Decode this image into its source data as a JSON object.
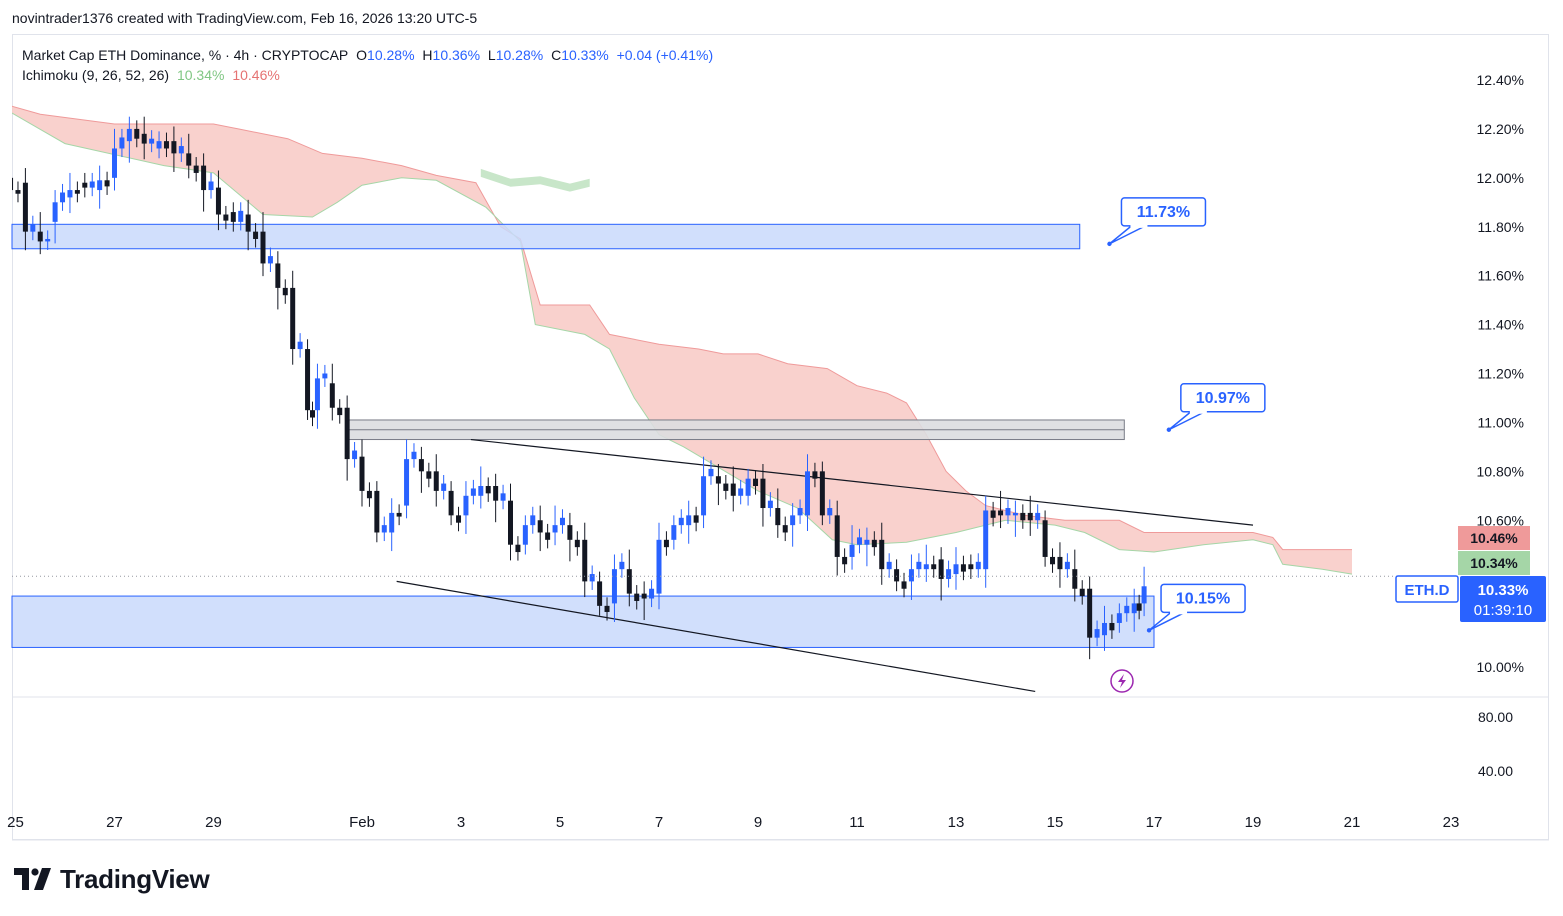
{
  "credit": "novintrader1376 created with TradingView.com, Feb 16, 2026 13:20 UTC-5",
  "legend": {
    "symbol": "Market Cap ETH Dominance, % · 4h · CRYPTOCAP",
    "o_label": "O",
    "o_value": "10.28%",
    "h_label": "H",
    "h_value": "10.36%",
    "l_label": "L",
    "l_value": "10.28%",
    "c_label": "C",
    "c_value": "10.33%",
    "change": "+0.04 (+0.41%)",
    "indicator": "Ichimoku (9, 26, 52, 26)",
    "ind_value1": "10.34%",
    "ind_value2": "10.46%"
  },
  "footer": {
    "brand": "TradingView"
  },
  "colors": {
    "up": "#2962ff",
    "down": "#131722",
    "cloud_bear": "#f8c9c4",
    "cloud_bull": "#c8e6c9",
    "zone": "#c9d9fb",
    "zone_border": "#2962ff",
    "resistance": "#d1d4dc",
    "label_border": "#2962ff"
  },
  "chart_data": {
    "type": "candlestick",
    "title": "Market Cap ETH Dominance, % · 4h · CRYPTOCAP",
    "symbol": "ETH.D",
    "price_axis": {
      "ylim": [
        9.88,
        12.5
      ],
      "ticks": [
        "12.40%",
        "12.20%",
        "12.00%",
        "11.80%",
        "11.60%",
        "11.40%",
        "11.20%",
        "11.00%",
        "10.80%",
        "10.60%",
        "10.00%"
      ],
      "tick_values": [
        12.4,
        12.2,
        12.0,
        11.8,
        11.6,
        11.4,
        11.2,
        11.0,
        10.8,
        10.6,
        10.0
      ]
    },
    "lower_axis": {
      "ticks": [
        "80.00",
        "40.00"
      ]
    },
    "time_axis": {
      "labels": [
        "25",
        "27",
        "29",
        "Feb",
        "3",
        "5",
        "7",
        "9",
        "11",
        "13",
        "15",
        "17",
        "19",
        "21",
        "23"
      ],
      "day_index": [
        -7,
        -5,
        -3,
        0,
        2,
        4,
        6,
        8,
        10,
        12,
        14,
        16,
        18,
        20,
        22
      ]
    },
    "candles_daily_path": [
      [
        -7.1,
        12.0,
        11.95
      ],
      [
        -6.8,
        11.98,
        11.78
      ],
      [
        -6.5,
        11.78,
        11.74
      ],
      [
        -6.2,
        11.82,
        11.9
      ],
      [
        -5.9,
        11.92,
        11.95
      ],
      [
        -5.6,
        11.98,
        11.96
      ],
      [
        -5.3,
        11.95,
        11.99
      ],
      [
        -5.0,
        12.0,
        12.12
      ],
      [
        -4.7,
        12.15,
        12.2
      ],
      [
        -4.4,
        12.18,
        12.14
      ],
      [
        -4.1,
        12.12,
        12.15
      ],
      [
        -3.8,
        12.15,
        12.1
      ],
      [
        -3.5,
        12.1,
        12.05
      ],
      [
        -3.2,
        12.05,
        11.95
      ],
      [
        -2.9,
        11.96,
        11.85
      ],
      [
        -2.6,
        11.86,
        11.82
      ],
      [
        -2.3,
        11.85,
        11.78
      ],
      [
        -2.0,
        11.78,
        11.65
      ],
      [
        -1.7,
        11.65,
        11.55
      ],
      [
        -1.4,
        11.55,
        11.3
      ],
      [
        -1.1,
        11.3,
        11.05
      ],
      [
        -0.9,
        11.05,
        11.18
      ],
      [
        -0.6,
        11.16,
        11.06
      ],
      [
        -0.3,
        11.06,
        10.85
      ],
      [
        0.0,
        10.86,
        10.72
      ],
      [
        0.3,
        10.72,
        10.55
      ],
      [
        0.6,
        10.55,
        10.63
      ],
      [
        0.9,
        10.66,
        10.85
      ],
      [
        1.2,
        10.85,
        10.8
      ],
      [
        1.5,
        10.8,
        10.72
      ],
      [
        1.8,
        10.72,
        10.62
      ],
      [
        2.1,
        10.62,
        10.7
      ],
      [
        2.4,
        10.7,
        10.74
      ],
      [
        2.7,
        10.74,
        10.68
      ],
      [
        3.0,
        10.68,
        10.5
      ],
      [
        3.3,
        10.5,
        10.58
      ],
      [
        3.6,
        10.6,
        10.55
      ],
      [
        3.9,
        10.55,
        10.58
      ],
      [
        4.2,
        10.58,
        10.52
      ],
      [
        4.5,
        10.52,
        10.35
      ],
      [
        4.8,
        10.35,
        10.25
      ],
      [
        5.1,
        10.26,
        10.4
      ],
      [
        5.4,
        10.4,
        10.3
      ],
      [
        5.7,
        10.3,
        10.28
      ],
      [
        6.0,
        10.3,
        10.52
      ],
      [
        6.3,
        10.52,
        10.58
      ],
      [
        6.6,
        10.58,
        10.62
      ],
      [
        6.9,
        10.62,
        10.78
      ],
      [
        7.2,
        10.78,
        10.75
      ],
      [
        7.5,
        10.75,
        10.7
      ],
      [
        7.8,
        10.7,
        10.77
      ],
      [
        8.1,
        10.77,
        10.65
      ],
      [
        8.4,
        10.65,
        10.58
      ],
      [
        8.7,
        10.58,
        10.62
      ],
      [
        9.0,
        10.62,
        10.8
      ],
      [
        9.3,
        10.8,
        10.62
      ],
      [
        9.6,
        10.62,
        10.45
      ],
      [
        9.9,
        10.45,
        10.5
      ],
      [
        10.2,
        10.5,
        10.52
      ],
      [
        10.5,
        10.52,
        10.4
      ],
      [
        10.8,
        10.4,
        10.35
      ],
      [
        11.1,
        10.35,
        10.4
      ],
      [
        11.4,
        10.4,
        10.42
      ],
      [
        11.7,
        10.44,
        10.36
      ],
      [
        12.0,
        10.38,
        10.42
      ],
      [
        12.3,
        10.42,
        10.4
      ],
      [
        12.6,
        10.4,
        10.64
      ],
      [
        12.9,
        10.64,
        10.62
      ],
      [
        13.2,
        10.62,
        10.63
      ],
      [
        13.5,
        10.63,
        10.6
      ],
      [
        13.8,
        10.6,
        10.45
      ],
      [
        14.1,
        10.45,
        10.4
      ],
      [
        14.4,
        10.4,
        10.32
      ],
      [
        14.7,
        10.32,
        10.12
      ],
      [
        15.0,
        10.13,
        10.18
      ],
      [
        15.3,
        10.18,
        10.22
      ],
      [
        15.6,
        10.22,
        10.26
      ],
      [
        15.8,
        10.26,
        10.33
      ]
    ],
    "ichimoku_cloud_bear_upper": [
      [
        -7.2,
        12.3
      ],
      [
        -6.5,
        12.26
      ],
      [
        -5.0,
        12.22
      ],
      [
        -3.0,
        12.22
      ],
      [
        -2.5,
        12.2
      ],
      [
        -1.5,
        12.16
      ],
      [
        -0.8,
        12.1
      ],
      [
        0.0,
        12.08
      ],
      [
        0.8,
        12.05
      ],
      [
        1.5,
        12.01
      ],
      [
        2.3,
        11.98
      ],
      [
        2.8,
        11.8
      ],
      [
        3.2,
        11.75
      ],
      [
        3.6,
        11.48
      ],
      [
        4.6,
        11.48
      ],
      [
        5.0,
        11.36
      ],
      [
        6.0,
        11.32
      ],
      [
        6.8,
        11.3
      ],
      [
        7.3,
        11.28
      ],
      [
        8.0,
        11.28
      ],
      [
        8.6,
        11.24
      ],
      [
        9.4,
        11.22
      ],
      [
        10.0,
        11.15
      ],
      [
        10.6,
        11.12
      ],
      [
        11.0,
        11.08
      ],
      [
        11.4,
        10.95
      ],
      [
        11.8,
        10.8
      ],
      [
        12.2,
        10.72
      ],
      [
        12.6,
        10.66
      ],
      [
        13.4,
        10.62
      ],
      [
        14.2,
        10.6
      ],
      [
        15.3,
        10.6
      ],
      [
        15.8,
        10.55
      ],
      [
        17.0,
        10.55
      ],
      [
        18.0,
        10.55
      ],
      [
        18.4,
        10.53
      ],
      [
        18.6,
        10.48
      ],
      [
        20.0,
        10.48
      ]
    ],
    "ichimoku_cloud_bear_lower": [
      [
        -7.2,
        12.28
      ],
      [
        -6.0,
        12.14
      ],
      [
        -4.0,
        12.05
      ],
      [
        -3.0,
        12.02
      ],
      [
        -2.0,
        11.85
      ],
      [
        -1.0,
        11.84
      ],
      [
        -0.5,
        11.9
      ],
      [
        0.0,
        11.97
      ],
      [
        0.8,
        12.0
      ],
      [
        1.5,
        11.99
      ],
      [
        2.5,
        11.88
      ],
      [
        2.9,
        11.8
      ],
      [
        3.2,
        11.74
      ],
      [
        3.5,
        11.4
      ],
      [
        4.5,
        11.36
      ],
      [
        5.0,
        11.3
      ],
      [
        5.5,
        11.1
      ],
      [
        6.0,
        10.95
      ],
      [
        6.5,
        10.9
      ],
      [
        7.0,
        10.84
      ],
      [
        7.5,
        10.78
      ],
      [
        8.0,
        10.72
      ],
      [
        8.8,
        10.65
      ],
      [
        9.5,
        10.52
      ],
      [
        10.0,
        10.5
      ],
      [
        11.0,
        10.51
      ],
      [
        12.0,
        10.55
      ],
      [
        13.0,
        10.6
      ],
      [
        14.0,
        10.58
      ],
      [
        14.6,
        10.55
      ],
      [
        15.3,
        10.48
      ],
      [
        16.0,
        10.47
      ],
      [
        17.0,
        10.5
      ],
      [
        18.0,
        10.52
      ],
      [
        18.4,
        10.5
      ],
      [
        18.6,
        10.42
      ],
      [
        19.4,
        10.4
      ],
      [
        20.0,
        10.38
      ]
    ],
    "ichimoku_cloud_bull": [
      [
        2.4,
        12.02
      ],
      [
        3.0,
        11.98
      ],
      [
        3.6,
        11.99
      ],
      [
        4.2,
        11.96
      ],
      [
        4.6,
        11.98
      ]
    ],
    "zones": [
      {
        "name": "upper-support-zone",
        "from_day": -7.2,
        "to_day": 14.5,
        "low": 11.71,
        "high": 11.81
      },
      {
        "name": "lower-support-zone",
        "from_day": -7.2,
        "to_day": 16.0,
        "low": 10.08,
        "high": 10.29
      },
      {
        "name": "resistance-band",
        "from_day": -0.3,
        "to_day": 15.4,
        "low": 10.93,
        "high": 11.01
      }
    ],
    "trendlines": [
      {
        "from": [
          2.2,
          10.93
        ],
        "to": [
          18.0,
          10.58
        ]
      },
      {
        "from": [
          0.7,
          10.35
        ],
        "to": [
          13.6,
          9.9
        ]
      }
    ],
    "callouts": [
      {
        "label": "11.73%",
        "anchor_day": 15.1,
        "anchor_price": 11.73
      },
      {
        "label": "10.97%",
        "anchor_day": 16.3,
        "anchor_price": 10.97
      },
      {
        "label": "10.15%",
        "anchor_day": 15.9,
        "anchor_price": 10.15
      }
    ],
    "last_price": {
      "value": 10.33,
      "label": "10.33%",
      "countdown": "01:39:10",
      "symbol_tag": "ETH.D"
    },
    "indicator_badges": [
      {
        "label": "10.46%",
        "value": 10.46,
        "color": "#ef9a9a"
      },
      {
        "label": "10.34%",
        "value": 10.34,
        "color": "#a5d6a7"
      }
    ],
    "grid": false,
    "legend_position": "top-left"
  }
}
